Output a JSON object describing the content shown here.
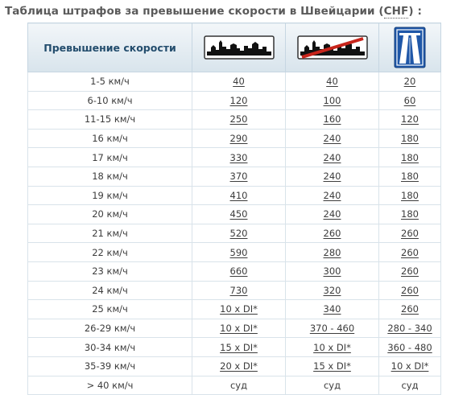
{
  "title": "Таблица штрафов за превышение скорости в Швейцарии (",
  "title_abbr": "CHF",
  "title_end": ") :",
  "header": {
    "col1": "Превышение скорости",
    "col2_icon": "town-silhouette-sign-icon",
    "col3_icon": "town-end-sign-icon",
    "col4_icon": "motorway-sign-icon"
  },
  "colors": {
    "header_text": "#234d6d",
    "border": "#c6d6e2",
    "sign_red": "#c8251c",
    "motorway_blue": "#1f57a8"
  },
  "rows": [
    {
      "speed": "1-5 км/ч",
      "c2": "40",
      "c3": "40",
      "c4": "20"
    },
    {
      "speed": "6-10 км/ч",
      "c2": "120",
      "c3": "100",
      "c4": "60"
    },
    {
      "speed": "11-15 км/ч",
      "c2": "250",
      "c3": "160",
      "c4": "120"
    },
    {
      "speed": "16 км/ч",
      "c2": "290",
      "c3": "240",
      "c4": "180"
    },
    {
      "speed": "17 км/ч",
      "c2": "330",
      "c3": "240",
      "c4": "180"
    },
    {
      "speed": "18 км/ч",
      "c2": "370",
      "c3": "240",
      "c4": "180"
    },
    {
      "speed": "19 км/ч",
      "c2": "410",
      "c3": "240",
      "c4": "180"
    },
    {
      "speed": "20 км/ч",
      "c2": "450",
      "c3": "240",
      "c4": "180"
    },
    {
      "speed": "21 км/ч",
      "c2": "520",
      "c3": "260",
      "c4": "260"
    },
    {
      "speed": "22 км/ч",
      "c2": "590",
      "c3": "280",
      "c4": "260"
    },
    {
      "speed": "23 км/ч",
      "c2": "660",
      "c3": "300",
      "c4": "260"
    },
    {
      "speed": "24 км/ч",
      "c2": "730",
      "c3": "320",
      "c4": "260"
    },
    {
      "speed": "25 км/ч",
      "c2": "10 x DI*",
      "c3": "340",
      "c4": "260"
    },
    {
      "speed": "26-29 км/ч",
      "c2": "10 x DI*",
      "c3": "370 - 460",
      "c4": "280 - 340"
    },
    {
      "speed": "30-34 км/ч",
      "c2": "15 x DI*",
      "c3": "10 x DI*",
      "c4": "360 - 480"
    },
    {
      "speed": "35-39 км/ч",
      "c2": "20 x DI*",
      "c3": "15 x DI*",
      "c4": "10 x DI*"
    },
    {
      "speed": "> 40 км/ч",
      "c2": "суд",
      "c3": "суд",
      "c4": "суд"
    }
  ]
}
